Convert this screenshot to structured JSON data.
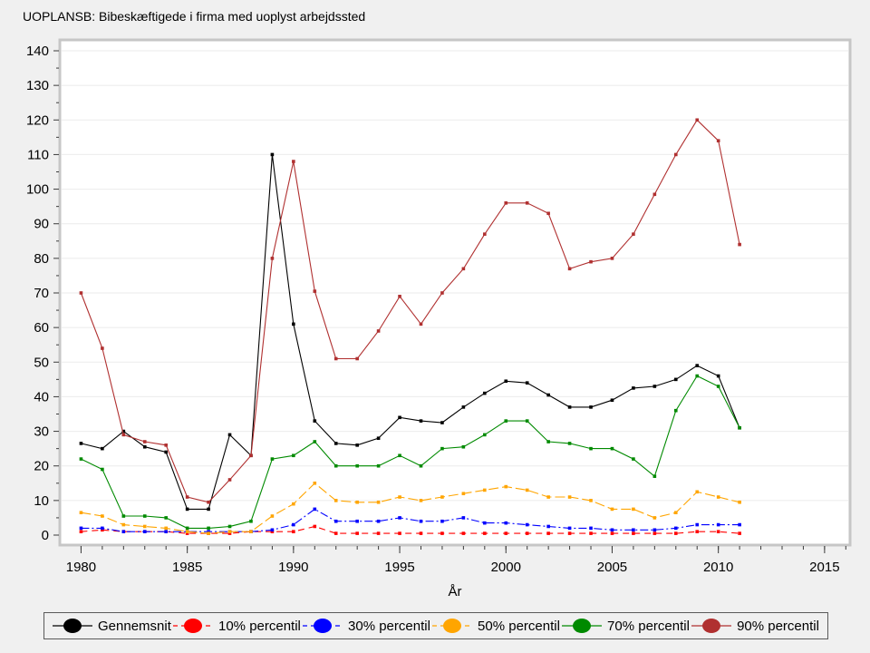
{
  "title": "UOPLANSB: Bibeskæftigede i firma med uoplyst arbejdssted",
  "chart_data": {
    "type": "line",
    "title": "UOPLANSB: Bibeskæftigede i firma med uoplyst arbejdssted",
    "xlabel": "År",
    "ylabel": "",
    "x": [
      1980,
      1981,
      1982,
      1983,
      1984,
      1985,
      1986,
      1987,
      1988,
      1989,
      1990,
      1991,
      1992,
      1993,
      1994,
      1995,
      1996,
      1997,
      1998,
      1999,
      2000,
      2001,
      2002,
      2003,
      2004,
      2005,
      2006,
      2007,
      2008,
      2009,
      2010,
      2011
    ],
    "series": [
      {
        "label": "Gennemsnit",
        "color": "#000000",
        "dash": "solid",
        "values": [
          26.5,
          25,
          30,
          25.5,
          24,
          7.5,
          7.5,
          29,
          23,
          110,
          61,
          33,
          26.5,
          26,
          28,
          34,
          33,
          32.5,
          37,
          41,
          44.5,
          44,
          40.5,
          37,
          37,
          39,
          42.5,
          43,
          45,
          49,
          46,
          31
        ]
      },
      {
        "label": "10% percentil",
        "color": "#ff0000",
        "dash": "dash",
        "values": [
          1,
          1.5,
          1,
          1,
          1,
          0.5,
          0.5,
          0.5,
          1,
          1,
          1,
          2.5,
          0.5,
          0.5,
          0.5,
          0.5,
          0.5,
          0.5,
          0.5,
          0.5,
          0.5,
          0.5,
          0.5,
          0.5,
          0.5,
          0.5,
          0.5,
          0.5,
          0.5,
          1,
          1,
          0.5
        ]
      },
      {
        "label": "30% percentil",
        "color": "#0000ff",
        "dash": "dashdot",
        "values": [
          2,
          2,
          1,
          1,
          1,
          1,
          1,
          1,
          1,
          1.5,
          3,
          7.5,
          4,
          4,
          4,
          5,
          4,
          4,
          5,
          3.5,
          3.5,
          3,
          2.5,
          2,
          2,
          1.5,
          1.5,
          1.5,
          2,
          3,
          3,
          3
        ]
      },
      {
        "label": "50% percentil",
        "color": "#ffa500",
        "dash": "longdash",
        "values": [
          6.5,
          5.5,
          3,
          2.5,
          2,
          1,
          0.5,
          1,
          1,
          5.5,
          9,
          15,
          10,
          9.5,
          9.5,
          11,
          10,
          11,
          12,
          13,
          14,
          13,
          11,
          11,
          10,
          7.5,
          7.5,
          5,
          6.5,
          12.5,
          11,
          9.5
        ]
      },
      {
        "label": "70% percentil",
        "color": "#008a00",
        "dash": "solid",
        "values": [
          22,
          19,
          5.5,
          5.5,
          5,
          2,
          2,
          2.5,
          4,
          22,
          23,
          27,
          20,
          20,
          20,
          23,
          20,
          25,
          25.5,
          29,
          33,
          33,
          27,
          26.5,
          25,
          25,
          22,
          17,
          36,
          46,
          43,
          31
        ]
      },
      {
        "label": "90% percentil",
        "color": "#b03030",
        "dash": "solid",
        "values": [
          70,
          54,
          29,
          27,
          26,
          11,
          9.5,
          16,
          23,
          80,
          108,
          70.5,
          51,
          51,
          59,
          69,
          61,
          70,
          77,
          87,
          96,
          96,
          93,
          77,
          79,
          80,
          87,
          98.5,
          110,
          120,
          114,
          84
        ]
      }
    ],
    "xlim": [
      1979,
      2016.2
    ],
    "ylim": [
      0,
      140
    ],
    "y_ticks": [
      0,
      10,
      20,
      30,
      40,
      50,
      60,
      70,
      80,
      90,
      100,
      110,
      120,
      130,
      140
    ],
    "y_minor_step": 5,
    "x_ticks_major": [
      1980,
      1985,
      1990,
      1995,
      2000,
      2005,
      2010,
      2015
    ],
    "x_minor_step": 1,
    "grid": "horizontal",
    "legend_position": "bottom",
    "colors": {
      "page_background": "#f0f0f0",
      "plot_background": "#ffffff",
      "frame": "#c6c6c6",
      "gridline": "#ebebeb",
      "tick": "#3a3a3a",
      "text": "#000000"
    }
  }
}
